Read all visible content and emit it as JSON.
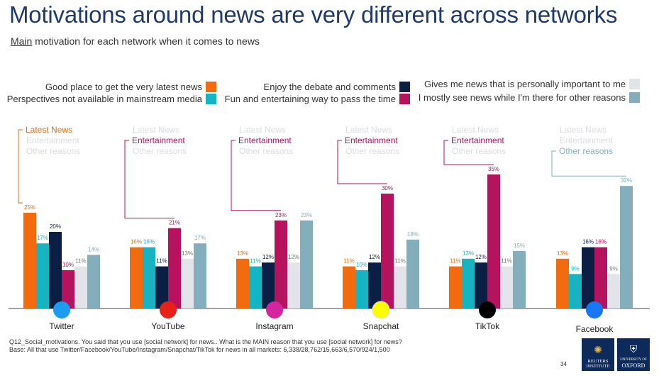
{
  "title": "Motivations around news are very different across networks",
  "subtitle_main": "Main",
  "subtitle_rest": " motivation for each network  when it comes to news",
  "legend": [
    {
      "label": "Good place to get the very latest news",
      "color": "#f26b0f"
    },
    {
      "label": "Perspectives not available in mainstream media",
      "color": "#17b3c1"
    },
    {
      "label": "Enjoy the debate and comments",
      "color": "#0b1f44"
    },
    {
      "label": "Fun and entertaining way to pass the time",
      "color": "#b5135d"
    },
    {
      "label": "Gives me news that is personally important to me",
      "color": "#e2e4ea"
    },
    {
      "label": "I mostly see news while I'm there for other reasons",
      "color": "#84aebc"
    }
  ],
  "chart_data": {
    "type": "bar",
    "categories": [
      "Twitter",
      "YouTube",
      "Instagram",
      "Snapchat",
      "TikTok",
      "Facebook"
    ],
    "series": [
      {
        "name": "Good place to get the very latest news",
        "color": "#f26b0f",
        "values": [
          25,
          16,
          13,
          11,
          11,
          13
        ]
      },
      {
        "name": "Perspectives not available in mainstream media",
        "color": "#17b3c1",
        "values": [
          17,
          16,
          11,
          10,
          13,
          9
        ]
      },
      {
        "name": "Enjoy the debate and comments",
        "color": "#0b1f44",
        "values": [
          20,
          11,
          12,
          12,
          12,
          16
        ]
      },
      {
        "name": "Fun and entertaining way to pass the time",
        "color": "#b5135d",
        "values": [
          10,
          21,
          23,
          30,
          35,
          16
        ]
      },
      {
        "name": "Gives me news that is personally important to me",
        "color": "#e2e4ea",
        "values": [
          11,
          13,
          12,
          11,
          11,
          9
        ]
      },
      {
        "name": "I mostly see news while I'm there for other reasons",
        "color": "#84aebc",
        "values": [
          14,
          17,
          23,
          18,
          15,
          32
        ]
      }
    ],
    "value_suffix": "%",
    "ylim": [
      0,
      40
    ],
    "grid": false,
    "legend_position": "top",
    "annotation_labels": [
      "Latest News",
      "Entertainment",
      "Other reasons"
    ],
    "annotation_highlight": [
      "Latest News",
      "Entertainment",
      "Entertainment",
      "Entertainment",
      "Entertainment",
      "Other reasons"
    ],
    "icons": [
      "twitter-icon",
      "youtube-icon",
      "instagram-icon",
      "snapchat-icon",
      "tiktok-icon",
      "facebook-icon"
    ],
    "icon_colors": [
      "#1d9bf0",
      "#e62117",
      "#d6249f",
      "#fffc00",
      "#000000",
      "#1877f2"
    ]
  },
  "footnote_line1": "Q12_Social_motivations. You said that you use [social network] for news.. What is the MAIN reason that you use [social network] for news?",
  "footnote_line2": "Base: All that use Twitter/Facebook/YouTube/Instagram/Snapchat/TikTok for news in all markets: 6,338/28,762/15,663/6,570/924/1,500",
  "page_number": "34",
  "logo_reuters": "REUTERS INSTITUTE",
  "logo_oxford_small": "UNIVERSITY OF",
  "logo_oxford": "OXFORD"
}
